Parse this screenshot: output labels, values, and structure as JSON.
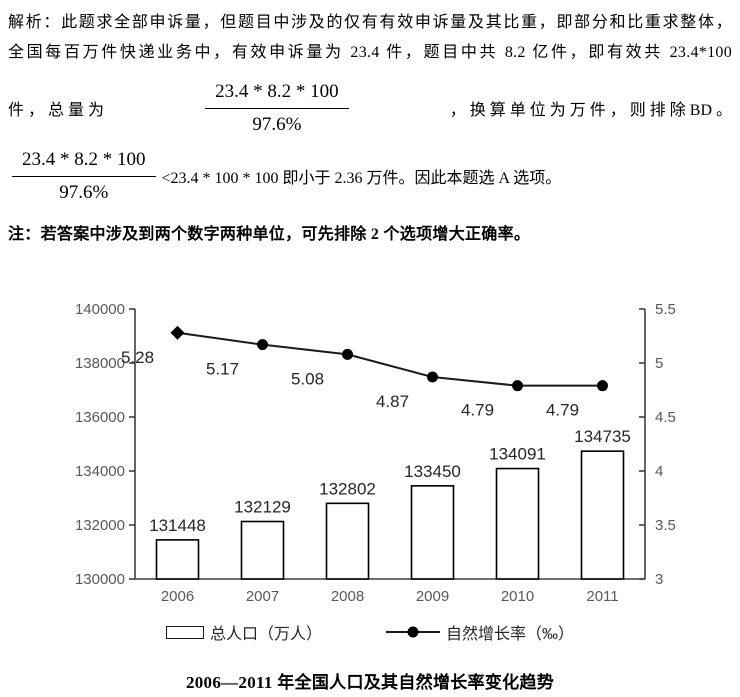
{
  "explanation": {
    "line1": "解析：此题求全部申诉量，但题目中涉及的仅有有效申诉量及其比重，即部分和比重求整体，",
    "line2": "全国每百万件快递业务中，有效申诉量为 23.4 件，题目中共 8.2 亿件，即有效共 23.4*100",
    "row1_prefix": "件 ， 总 量 为",
    "fraction1_numerator": "23.4 * 8.2 * 100",
    "fraction1_denominator": "97.6%",
    "row1_suffix": "， 换 算 单 位 为 万 件 ， 则 排 除 BD 。",
    "fraction2_numerator": "23.4 * 8.2 * 100",
    "fraction2_denominator": "97.6%",
    "row2_rest": "<23.4 * 100 * 100 即小于 2.36 万件。因此本题选 A 选项。",
    "note": "注：若答案中涉及到两个数字两种单位，可先排除 2 个选项增大正确率。"
  },
  "chart_data": {
    "type": "bar+line",
    "title": "2006—2011 年全国人口及其自然增长率变化趋势",
    "categories": [
      "2006",
      "2007",
      "2008",
      "2009",
      "2010",
      "2011"
    ],
    "series": [
      {
        "name": "总人口（万人）",
        "type": "bar",
        "axis": "left",
        "values": [
          131448,
          132129,
          132802,
          133450,
          134091,
          134735
        ]
      },
      {
        "name": "自然增长率（‰）",
        "type": "line",
        "axis": "right",
        "values": [
          5.28,
          5.17,
          5.08,
          4.87,
          4.79,
          4.79
        ]
      }
    ],
    "left_axis": {
      "min": 130000,
      "max": 140000,
      "step": 2000,
      "ticks": [
        "130000",
        "132000",
        "134000",
        "136000",
        "138000",
        "140000"
      ]
    },
    "right_axis": {
      "min": 3,
      "max": 5.5,
      "step": 0.5,
      "ticks": [
        "3",
        "3.5",
        "4",
        "4.5",
        "5",
        "5.5"
      ]
    },
    "grid": false,
    "legend_position": "bottom",
    "colors": {
      "axis": "#404040",
      "tick_label": "#595959",
      "bar_fill": "#ffffff",
      "bar_stroke": "#000000",
      "line": "#1a1a1a",
      "data_label": "#262626"
    }
  }
}
